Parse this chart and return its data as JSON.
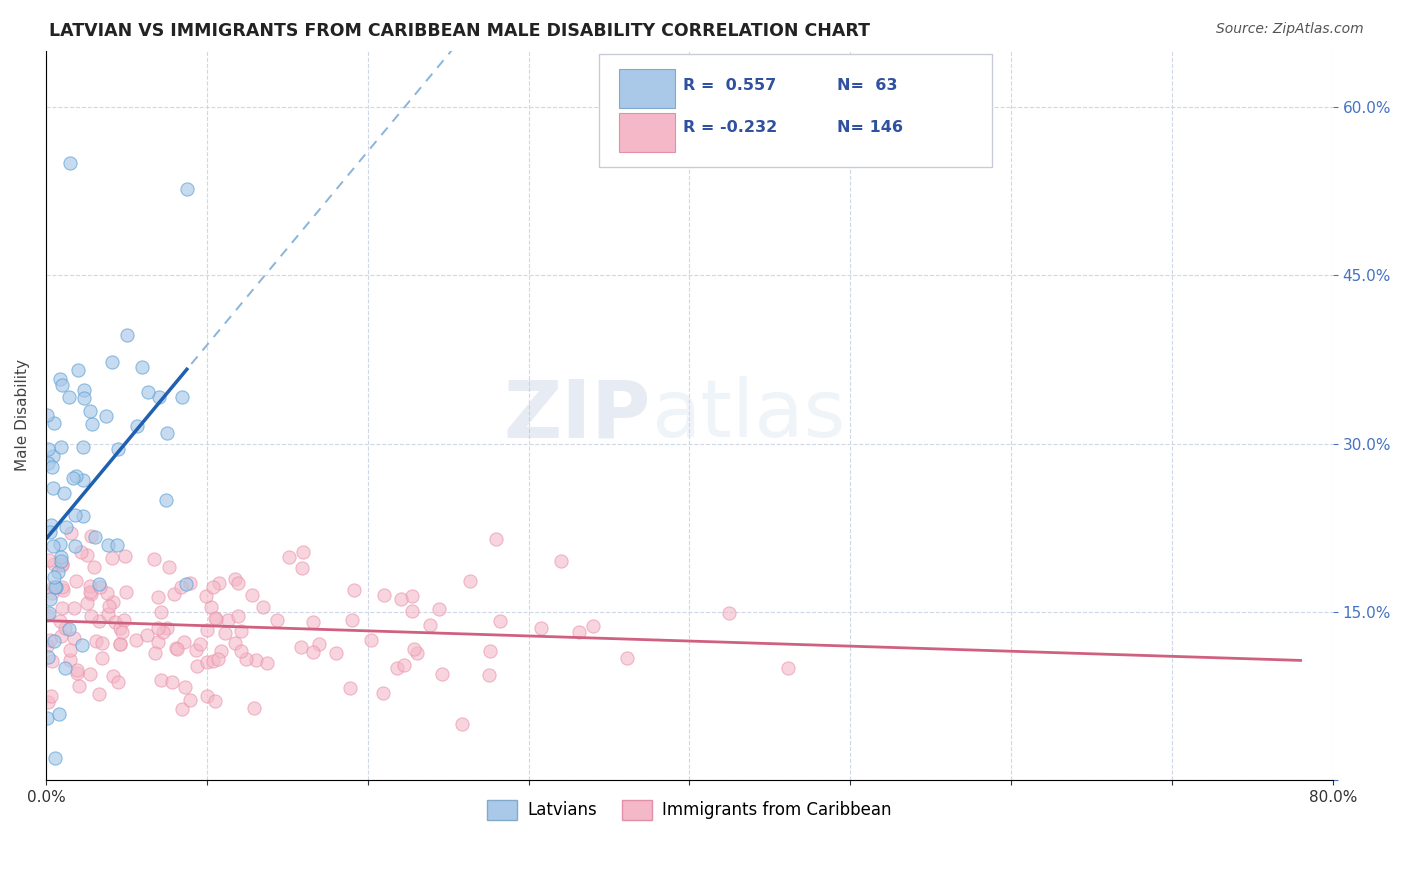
{
  "title": "LATVIAN VS IMMIGRANTS FROM CARIBBEAN MALE DISABILITY CORRELATION CHART",
  "source": "Source: ZipAtlas.com",
  "ylabel": "Male Disability",
  "xmin": 0.0,
  "xmax": 0.8,
  "ymin": 0.0,
  "ymax": 0.65,
  "blue_color": "#a8c8e8",
  "blue_edge_color": "#5a9fd4",
  "blue_line_color": "#2060b0",
  "blue_dash_color": "#8ab4d8",
  "pink_color": "#f4b8c8",
  "pink_edge_color": "#e890a8",
  "pink_line_color": "#d06080",
  "grid_color": "#d0d8e8",
  "background_color": "#ffffff",
  "right_tick_color": "#4472c4",
  "legend_text_color": "#3050a0",
  "title_color": "#222222",
  "source_color": "#555555",
  "watermark_zip_color": "#c0cce0",
  "watermark_atlas_color": "#c8d8e8"
}
